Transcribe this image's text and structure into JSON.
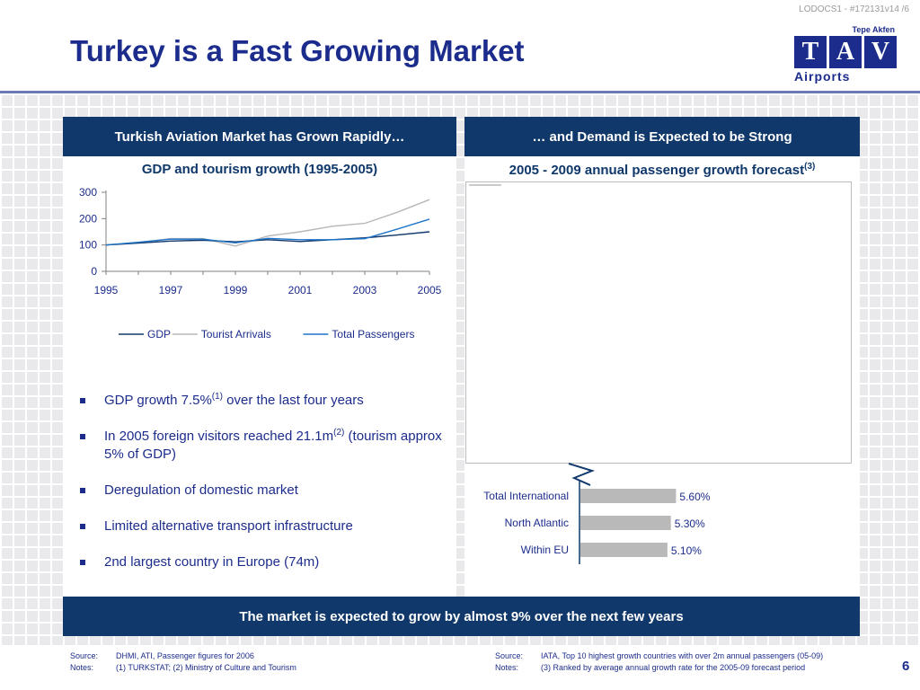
{
  "doc_id": "LODOCS1 - #172131v14 /6",
  "title": "Turkey is a Fast Growing Market",
  "logo": {
    "top": "Tepe Akfen",
    "letters": [
      "T",
      "A",
      "V"
    ],
    "bottom": "Airports"
  },
  "left_panel": {
    "header": "Turkish Aviation Market has Grown Rapidly…",
    "chart_title": "GDP and tourism growth (1995-2005)",
    "bullets": [
      {
        "text": "GDP growth 7.5%",
        "sup": "(1)",
        "rest": " over the last four years"
      },
      {
        "text": "In 2005 foreign visitors reached 21.1m",
        "sup": "(2)",
        "rest": " (tourism approx 5% of GDP)"
      },
      {
        "text": "Deregulation of domestic market",
        "sup": "",
        "rest": ""
      },
      {
        "text": "Limited alternative transport infrastructure",
        "sup": "",
        "rest": ""
      },
      {
        "text": "2nd largest country in Europe (74m)",
        "sup": "",
        "rest": ""
      }
    ]
  },
  "right_panel": {
    "header": "… and Demand is Expected to be Strong",
    "chart_title": "2005 - 2009 annual passenger growth forecast",
    "chart_title_sup": "(3)"
  },
  "footer_bar": "The market is expected to grow by almost 9% over the next few years",
  "notes_left": [
    {
      "label": "Source:",
      "text": "DHMI, ATI, Passenger figures for 2006"
    },
    {
      "label": "Notes:",
      "text": "(1) TURKSTAT; (2) Ministry of Culture and Tourism"
    }
  ],
  "notes_right": [
    {
      "label": "Source:",
      "text": "IATA, Top 10 highest growth countries with over 2m annual passengers (05-09)"
    },
    {
      "label": "Notes:",
      "text": "(3) Ranked by average annual growth rate for the 2005-09 forecast period"
    }
  ],
  "page_number": "6",
  "colors": {
    "navy": "#10386b",
    "title": "#1c2c8c",
    "gdp": "#10386b",
    "tourist": "#b7b7b7",
    "passengers": "#1f74c8",
    "bar": "#b9b9b9"
  },
  "chart_data": [
    {
      "type": "line",
      "x": [
        1995,
        1996,
        1997,
        1998,
        1999,
        2000,
        2001,
        2002,
        2003,
        2004,
        2005
      ],
      "xticks": [
        1995,
        1997,
        1999,
        2001,
        2003,
        2005
      ],
      "yticks": [
        0,
        100,
        200,
        300
      ],
      "ylim": [
        0,
        300
      ],
      "series": [
        {
          "name": "GDP",
          "color": "#10386b",
          "values": [
            100,
            107,
            115,
            118,
            112,
            120,
            113,
            120,
            127,
            138,
            150
          ]
        },
        {
          "name": "Tourist Arrivals",
          "color": "#b7b7b7",
          "values": [
            100,
            110,
            124,
            124,
            96,
            134,
            150,
            171,
            182,
            224,
            272
          ]
        },
        {
          "name": "Total Passengers",
          "color": "#1f74c8",
          "values": [
            100,
            110,
            122,
            122,
            108,
            125,
            120,
            120,
            124,
            160,
            198
          ]
        }
      ],
      "legend": "bottom",
      "grid": false
    },
    {
      "type": "bar",
      "orientation": "horizontal",
      "categories": [
        "Total International",
        "North Atlantic",
        "Within EU"
      ],
      "values": [
        5.6,
        5.3,
        5.1
      ],
      "labels": [
        "5.60%",
        "5.30%",
        "5.10%"
      ],
      "xlim": [
        0,
        10
      ]
    }
  ]
}
